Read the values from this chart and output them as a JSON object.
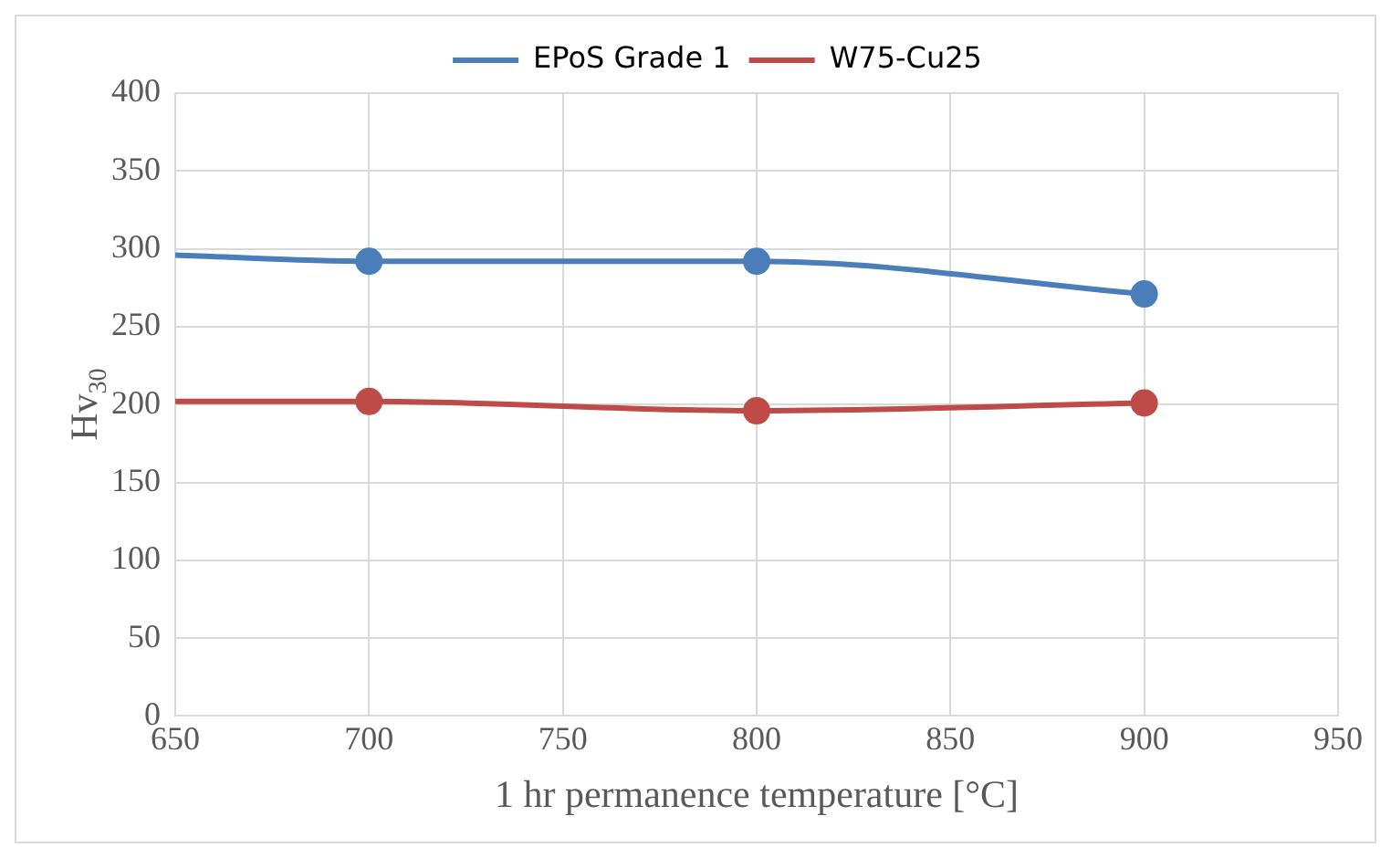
{
  "chart_data": {
    "type": "line",
    "xlabel": "1 hr permanence temperature [°C]",
    "ylabel": "Hv$_{30}$",
    "series": [
      {
        "name": "EPoS Grade 1",
        "color": "#4a7ebb",
        "x": [
          650,
          700,
          800,
          900
        ],
        "values": [
          296,
          292,
          292,
          271
        ]
      },
      {
        "name": "W75-Cu25",
        "color": "#be4b48",
        "x": [
          650,
          700,
          800,
          900
        ],
        "values": [
          202,
          202,
          196,
          201
        ]
      }
    ],
    "xlim": [
      650,
      950
    ],
    "xticks": [
      650,
      700,
      750,
      800,
      850,
      900,
      950
    ],
    "ylim": [
      0,
      400
    ],
    "yticks": [
      0,
      50,
      100,
      150,
      200,
      250,
      300,
      350,
      400
    ],
    "grid": true,
    "legend": "top",
    "marker": "circle",
    "line_style": "solid"
  }
}
